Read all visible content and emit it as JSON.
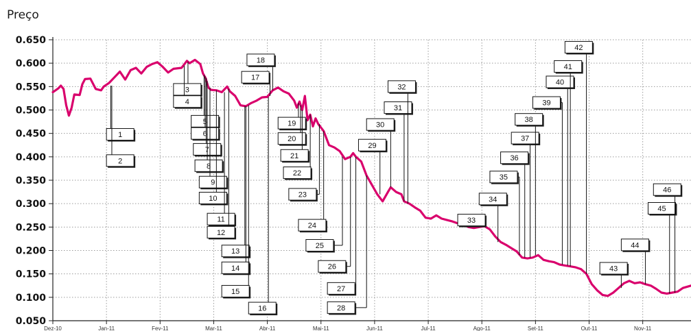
{
  "chart_data": {
    "type": "line",
    "ylabel": "Preço",
    "ylim": [
      0.05,
      0.65
    ],
    "y_ticks": [
      "0.650",
      "0.600",
      "0.550",
      "0.500",
      "0.450",
      "0.400",
      "0.350",
      "0.300",
      "0.250",
      "0.200",
      "0.150",
      "0.100",
      "0.050"
    ],
    "y_tick_values": [
      0.65,
      0.6,
      0.55,
      0.5,
      0.45,
      0.4,
      0.35,
      0.3,
      0.25,
      0.2,
      0.15,
      0.1,
      0.05
    ],
    "x_ticks": [
      "Dez-10",
      "Jan-11",
      "Fev-11",
      "Mar-11",
      "Abr-11",
      "Mai-11",
      "Jun-11",
      "Jul-11",
      "Ago-11",
      "Set-11",
      "Out-11",
      "Nov-11"
    ],
    "x_tick_month_index": [
      0,
      1,
      2,
      3,
      4,
      5,
      6,
      7,
      8,
      9,
      10,
      11
    ],
    "xlim_month_index": [
      0,
      11.9
    ],
    "grid": {
      "x": true,
      "y": true,
      "style": "dotted"
    },
    "series": [
      {
        "color": "#d9006c",
        "points": [
          [
            0.0,
            0.538
          ],
          [
            0.05,
            0.542
          ],
          [
            0.1,
            0.546
          ],
          [
            0.15,
            0.552
          ],
          [
            0.2,
            0.545
          ],
          [
            0.25,
            0.51
          ],
          [
            0.3,
            0.488
          ],
          [
            0.35,
            0.505
          ],
          [
            0.4,
            0.533
          ],
          [
            0.5,
            0.532
          ],
          [
            0.55,
            0.555
          ],
          [
            0.6,
            0.566
          ],
          [
            0.7,
            0.567
          ],
          [
            0.8,
            0.545
          ],
          [
            0.9,
            0.542
          ],
          [
            0.95,
            0.55
          ],
          [
            1.05,
            0.558
          ],
          [
            1.15,
            0.57
          ],
          [
            1.25,
            0.582
          ],
          [
            1.35,
            0.565
          ],
          [
            1.45,
            0.585
          ],
          [
            1.55,
            0.59
          ],
          [
            1.65,
            0.578
          ],
          [
            1.75,
            0.592
          ],
          [
            1.85,
            0.598
          ],
          [
            1.95,
            0.602
          ],
          [
            2.05,
            0.592
          ],
          [
            2.15,
            0.58
          ],
          [
            2.25,
            0.588
          ],
          [
            2.4,
            0.59
          ],
          [
            2.5,
            0.605
          ],
          [
            2.55,
            0.6
          ],
          [
            2.65,
            0.607
          ],
          [
            2.75,
            0.598
          ],
          [
            2.8,
            0.578
          ],
          [
            2.85,
            0.568
          ],
          [
            2.9,
            0.548
          ],
          [
            2.95,
            0.543
          ],
          [
            3.05,
            0.542
          ],
          [
            3.15,
            0.538
          ],
          [
            3.25,
            0.55
          ],
          [
            3.3,
            0.54
          ],
          [
            3.4,
            0.53
          ],
          [
            3.5,
            0.51
          ],
          [
            3.6,
            0.508
          ],
          [
            3.7,
            0.515
          ],
          [
            3.8,
            0.52
          ],
          [
            3.9,
            0.527
          ],
          [
            4.0,
            0.528
          ],
          [
            4.1,
            0.542
          ],
          [
            4.2,
            0.548
          ],
          [
            4.3,
            0.54
          ],
          [
            4.4,
            0.535
          ],
          [
            4.5,
            0.52
          ],
          [
            4.55,
            0.505
          ],
          [
            4.6,
            0.518
          ],
          [
            4.65,
            0.5
          ],
          [
            4.7,
            0.53
          ],
          [
            4.75,
            0.478
          ],
          [
            4.8,
            0.49
          ],
          [
            4.85,
            0.465
          ],
          [
            4.9,
            0.482
          ],
          [
            4.95,
            0.47
          ],
          [
            5.05,
            0.455
          ],
          [
            5.15,
            0.425
          ],
          [
            5.25,
            0.42
          ],
          [
            5.35,
            0.412
          ],
          [
            5.45,
            0.395
          ],
          [
            5.55,
            0.4
          ],
          [
            5.6,
            0.408
          ],
          [
            5.65,
            0.4
          ],
          [
            5.75,
            0.39
          ],
          [
            5.85,
            0.36
          ],
          [
            5.95,
            0.34
          ],
          [
            6.05,
            0.32
          ],
          [
            6.15,
            0.305
          ],
          [
            6.25,
            0.325
          ],
          [
            6.3,
            0.335
          ],
          [
            6.4,
            0.325
          ],
          [
            6.5,
            0.32
          ],
          [
            6.55,
            0.305
          ],
          [
            6.65,
            0.3
          ],
          [
            6.75,
            0.292
          ],
          [
            6.85,
            0.285
          ],
          [
            6.95,
            0.27
          ],
          [
            7.05,
            0.268
          ],
          [
            7.15,
            0.275
          ],
          [
            7.25,
            0.268
          ],
          [
            7.35,
            0.265
          ],
          [
            7.45,
            0.262
          ],
          [
            7.55,
            0.258
          ],
          [
            7.65,
            0.255
          ],
          [
            7.75,
            0.25
          ],
          [
            7.85,
            0.248
          ],
          [
            7.95,
            0.25
          ],
          [
            8.05,
            0.252
          ],
          [
            8.15,
            0.245
          ],
          [
            8.25,
            0.23
          ],
          [
            8.35,
            0.218
          ],
          [
            8.45,
            0.212
          ],
          [
            8.55,
            0.205
          ],
          [
            8.65,
            0.198
          ],
          [
            8.75,
            0.185
          ],
          [
            8.85,
            0.183
          ],
          [
            8.95,
            0.185
          ],
          [
            9.05,
            0.19
          ],
          [
            9.15,
            0.18
          ],
          [
            9.25,
            0.177
          ],
          [
            9.35,
            0.175
          ],
          [
            9.45,
            0.17
          ],
          [
            9.55,
            0.168
          ],
          [
            9.65,
            0.166
          ],
          [
            9.75,
            0.164
          ],
          [
            9.85,
            0.16
          ],
          [
            9.95,
            0.15
          ],
          [
            10.05,
            0.128
          ],
          [
            10.15,
            0.115
          ],
          [
            10.25,
            0.105
          ],
          [
            10.35,
            0.103
          ],
          [
            10.45,
            0.11
          ],
          [
            10.55,
            0.12
          ],
          [
            10.65,
            0.13
          ],
          [
            10.75,
            0.135
          ],
          [
            10.85,
            0.13
          ],
          [
            10.95,
            0.132
          ],
          [
            11.05,
            0.128
          ],
          [
            11.15,
            0.125
          ],
          [
            11.25,
            0.118
          ],
          [
            11.35,
            0.11
          ],
          [
            11.45,
            0.108
          ],
          [
            11.55,
            0.11
          ],
          [
            11.65,
            0.112
          ],
          [
            11.75,
            0.12
          ],
          [
            11.9,
            0.125
          ]
        ]
      }
    ],
    "annotations": [
      {
        "label": "1",
        "box": [
          1.0,
          0.448
        ],
        "line_x": 1.08,
        "target_y": 0.552
      },
      {
        "label": "2",
        "box": [
          1.0,
          0.392
        ],
        "line_x": 1.1,
        "target_y": 0.552
      },
      {
        "label": "3",
        "box": [
          2.25,
          0.544
        ],
        "line_x": 2.52,
        "target_y": 0.603
      },
      {
        "label": "4",
        "box": [
          2.25,
          0.518
        ],
        "line_x": 2.45,
        "target_y": 0.595
      },
      {
        "label": "5",
        "box": [
          2.58,
          0.476
        ],
        "line_x": 2.82,
        "target_y": 0.575
      },
      {
        "label": "6",
        "box": [
          2.58,
          0.45
        ],
        "line_x": 2.84,
        "target_y": 0.572
      },
      {
        "label": "7",
        "box": [
          2.62,
          0.416
        ],
        "line_x": 2.86,
        "target_y": 0.568
      },
      {
        "label": "8",
        "box": [
          2.65,
          0.381
        ],
        "line_x": 2.88,
        "target_y": 0.562
      },
      {
        "label": "9",
        "box": [
          2.73,
          0.346
        ],
        "line_x": 2.93,
        "target_y": 0.548
      },
      {
        "label": "10",
        "box": [
          2.73,
          0.312
        ],
        "line_x": 3.05,
        "target_y": 0.542
      },
      {
        "label": "11",
        "box": [
          2.88,
          0.267
        ],
        "line_x": 3.2,
        "target_y": 0.538
      },
      {
        "label": "12",
        "box": [
          2.88,
          0.239
        ],
        "line_x": 3.28,
        "target_y": 0.545
      },
      {
        "label": "13",
        "box": [
          3.15,
          0.199
        ],
        "line_x": 3.58,
        "target_y": 0.508
      },
      {
        "label": "14",
        "box": [
          3.15,
          0.163
        ],
        "line_x": 3.6,
        "target_y": 0.508
      },
      {
        "label": "15",
        "box": [
          3.15,
          0.113
        ],
        "line_x": 3.65,
        "target_y": 0.51
      },
      {
        "label": "16",
        "box": [
          3.65,
          0.077
        ],
        "line_x": 4.02,
        "target_y": 0.528
      },
      {
        "label": "17",
        "box": [
          3.52,
          0.57
        ],
        "line_x": 4.05,
        "target_y": 0.53
      },
      {
        "label": "18",
        "box": [
          3.62,
          0.607
        ],
        "line_x": 4.1,
        "target_y": 0.542
      },
      {
        "label": "19",
        "box": [
          4.2,
          0.472
        ],
        "line_x": 4.58,
        "target_y": 0.515
      },
      {
        "label": "20",
        "box": [
          4.2,
          0.439
        ],
        "line_x": 4.62,
        "target_y": 0.51
      },
      {
        "label": "21",
        "box": [
          4.25,
          0.403
        ],
        "line_x": 4.65,
        "target_y": 0.5
      },
      {
        "label": "22",
        "box": [
          4.3,
          0.366
        ],
        "line_x": 4.8,
        "target_y": 0.49
      },
      {
        "label": "23",
        "box": [
          4.4,
          0.32
        ],
        "line_x": 4.97,
        "target_y": 0.47
      },
      {
        "label": "24",
        "box": [
          4.58,
          0.254
        ],
        "line_x": 5.05,
        "target_y": 0.455
      },
      {
        "label": "25",
        "box": [
          4.72,
          0.211
        ],
        "line_x": 5.4,
        "target_y": 0.4
      },
      {
        "label": "26",
        "box": [
          4.95,
          0.166
        ],
        "line_x": 5.55,
        "target_y": 0.4
      },
      {
        "label": "27",
        "box": [
          5.12,
          0.119
        ],
        "line_x": 5.65,
        "target_y": 0.4
      },
      {
        "label": "28",
        "box": [
          5.12,
          0.078
        ],
        "line_x": 5.85,
        "target_y": 0.36
      },
      {
        "label": "29",
        "box": [
          5.7,
          0.425
        ],
        "line_x": 6.1,
        "target_y": 0.32
      },
      {
        "label": "30",
        "box": [
          5.85,
          0.469
        ],
        "line_x": 6.3,
        "target_y": 0.335
      },
      {
        "label": "31",
        "box": [
          6.18,
          0.505
        ],
        "line_x": 6.55,
        "target_y": 0.305
      },
      {
        "label": "32",
        "box": [
          6.25,
          0.55
        ],
        "line_x": 6.62,
        "target_y": 0.3
      },
      {
        "label": "33",
        "box": [
          7.55,
          0.265
        ],
        "line_x": 7.9,
        "target_y": 0.25
      },
      {
        "label": "34",
        "box": [
          7.95,
          0.31
        ],
        "line_x": 8.3,
        "target_y": 0.218
      },
      {
        "label": "35",
        "box": [
          8.15,
          0.357
        ],
        "line_x": 8.7,
        "target_y": 0.19
      },
      {
        "label": "36",
        "box": [
          8.35,
          0.398
        ],
        "line_x": 8.8,
        "target_y": 0.185
      },
      {
        "label": "37",
        "box": [
          8.55,
          0.44
        ],
        "line_x": 8.9,
        "target_y": 0.185
      },
      {
        "label": "38",
        "box": [
          8.62,
          0.48
        ],
        "line_x": 9.0,
        "target_y": 0.19
      },
      {
        "label": "39",
        "box": [
          8.95,
          0.516
        ],
        "line_x": 9.5,
        "target_y": 0.17
      },
      {
        "label": "40",
        "box": [
          9.2,
          0.56
        ],
        "line_x": 9.6,
        "target_y": 0.168
      },
      {
        "label": "41",
        "box": [
          9.35,
          0.593
        ],
        "line_x": 9.65,
        "target_y": 0.166
      },
      {
        "label": "42",
        "box": [
          9.55,
          0.634
        ],
        "line_x": 9.95,
        "target_y": 0.15
      },
      {
        "label": "43",
        "box": [
          10.2,
          0.162
        ],
        "line_x": 10.6,
        "target_y": 0.12
      },
      {
        "label": "44",
        "box": [
          10.6,
          0.212
        ],
        "line_x": 11.05,
        "target_y": 0.128
      },
      {
        "label": "45",
        "box": [
          11.1,
          0.29
        ],
        "line_x": 11.5,
        "target_y": 0.108
      },
      {
        "label": "46",
        "box": [
          11.2,
          0.33
        ],
        "line_x": 11.6,
        "target_y": 0.11
      }
    ]
  }
}
